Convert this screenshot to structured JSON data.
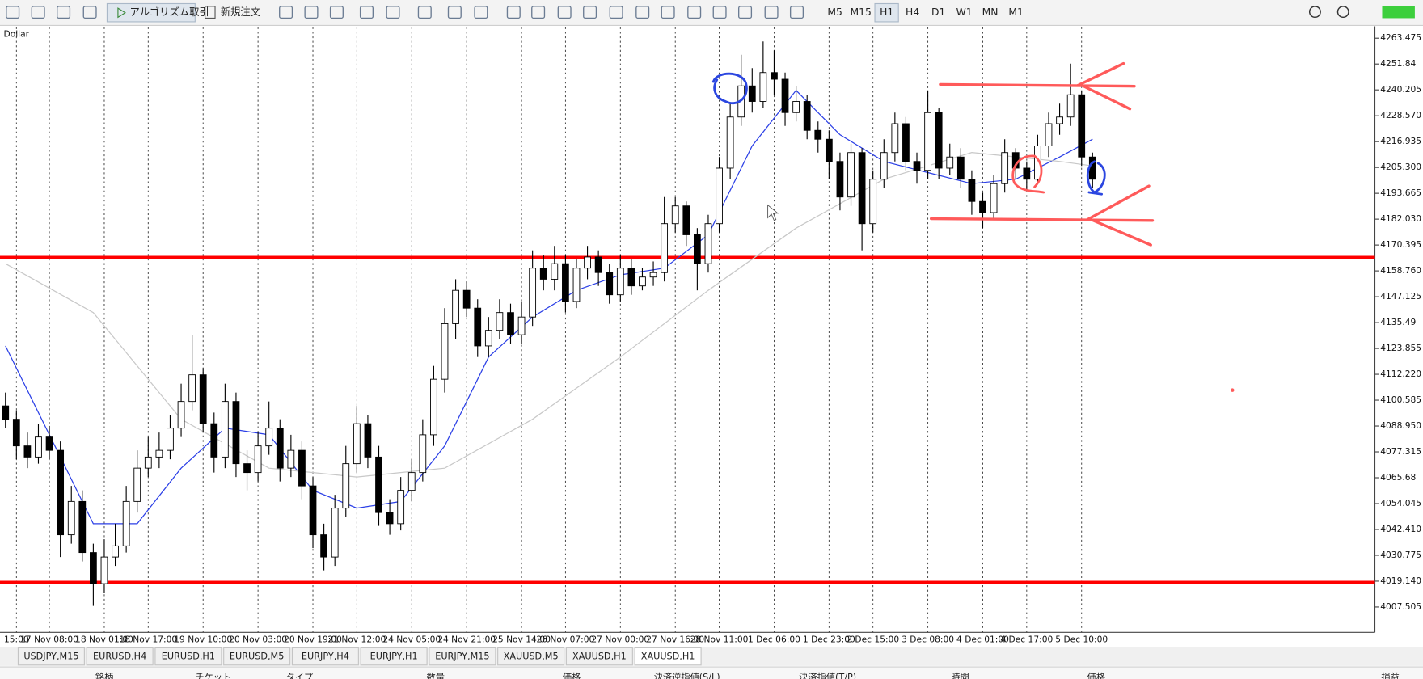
{
  "toolbar": {
    "buttons": [
      "アルゴリズム取引",
      "新規注文"
    ],
    "timeframes": [
      {
        "label": "M5",
        "active": false
      },
      {
        "label": "M15",
        "active": false
      },
      {
        "label": "H1",
        "active": true
      },
      {
        "label": "H4",
        "active": false
      },
      {
        "label": "D1",
        "active": false
      },
      {
        "label": "W1",
        "active": false
      },
      {
        "label": "MN",
        "active": false
      },
      {
        "label": "M1",
        "active": false
      }
    ]
  },
  "chart_data": {
    "type": "candlestick",
    "symbol_label": "Dollar",
    "grid": "vertical",
    "up_color": "#ffffff",
    "down_color": "#000000",
    "ylim": [
      3996.9,
      4268.4
    ],
    "yticks": [
      4263.475,
      4251.84,
      4240.205,
      {
        "value": 4228.57,
        "label": "4228.570"
      },
      4216.935,
      {
        "value": 4205.3,
        "label": "4205.300"
      },
      4193.665,
      {
        "value": 4182.03,
        "label": "4182.030"
      },
      4170.395,
      {
        "value": 4158.76,
        "label": "4158.760"
      },
      4147.125,
      4135.49,
      4123.855,
      {
        "value": 4112.22,
        "label": "4112.220"
      },
      4100.585,
      {
        "value": 4088.95,
        "label": "4088.950"
      },
      4077.315,
      4065.68,
      4054.045,
      {
        "value": 4042.41,
        "label": "4042.410"
      },
      4030.775,
      {
        "value": 4019.14,
        "label": "4019.140"
      },
      4007.505
    ],
    "categories": [
      null,
      "15:00",
      null,
      null,
      "17 Nov 08:00",
      null,
      null,
      null,
      null,
      "18 Nov 01:00",
      null,
      null,
      null,
      "18 Nov 17:00",
      null,
      null,
      null,
      null,
      "19 Nov 10:00",
      null,
      null,
      null,
      null,
      "20 Nov 03:00",
      null,
      null,
      null,
      null,
      "20 Nov 19:00",
      null,
      null,
      null,
      "21 Nov 12:00",
      null,
      null,
      null,
      null,
      "24 Nov 05:00",
      null,
      null,
      null,
      null,
      "24 Nov 21:00",
      null,
      null,
      null,
      null,
      "25 Nov 14:00",
      null,
      null,
      null,
      "26 Nov 07:00",
      null,
      null,
      null,
      null,
      "27 Nov 00:00",
      null,
      null,
      null,
      null,
      "27 Nov 16:00",
      null,
      null,
      null,
      "28 Nov 11:00",
      null,
      null,
      null,
      null,
      "1 Dec 06:00",
      null,
      null,
      null,
      null,
      "1 Dec 23:00",
      null,
      null,
      null,
      "2 Dec 15:00",
      null,
      null,
      null,
      null,
      "3 Dec 08:00",
      null,
      null,
      null,
      null,
      "4 Dec 01:00",
      null,
      null,
      null,
      "4 Dec 17:00",
      null,
      null,
      null,
      null,
      "5 Dec 10:00",
      null
    ],
    "open": [
      4098,
      4092,
      4080,
      4075,
      4084,
      4078,
      4040,
      4055,
      4032,
      4018,
      4030,
      4035,
      4055,
      4070,
      4075,
      4078,
      4088,
      4100,
      4112,
      4090,
      4075,
      4100,
      4072,
      4068,
      4080,
      4088,
      4070,
      4078,
      4062,
      4040,
      4030,
      4052,
      4072,
      4090,
      4075,
      4050,
      4045,
      4060,
      4068,
      4085,
      4110,
      4135,
      4150,
      4142,
      4125,
      4132,
      4140,
      4130,
      4138,
      4160,
      4155,
      4162,
      4145,
      4160,
      4165,
      4158,
      4148,
      4160,
      4152,
      4156,
      4158,
      4180,
      4188,
      4175,
      4162,
      4180,
      4205,
      4228,
      4242,
      4235,
      4248,
      4245,
      4230,
      4235,
      4222,
      4218,
      4208,
      4192,
      4212,
      4180,
      4200,
      4212,
      4225,
      4208,
      4204,
      4230,
      4205,
      4210,
      4200,
      4190,
      4185,
      4198,
      4212,
      4205,
      4200,
      4215,
      4225,
      4228,
      4238,
      4210
    ],
    "high": [
      4104,
      4096,
      4086,
      4090,
      4089,
      4082,
      4062,
      4060,
      4036,
      4038,
      4045,
      4062,
      4078,
      4084,
      4086,
      4094,
      4108,
      4130,
      4115,
      4095,
      4108,
      4104,
      4078,
      4086,
      4100,
      4092,
      4085,
      4082,
      4066,
      4045,
      4058,
      4080,
      4098,
      4094,
      4080,
      4056,
      4066,
      4074,
      4092,
      4116,
      4142,
      4155,
      4154,
      4146,
      4138,
      4146,
      4144,
      4145,
      4168,
      4166,
      4170,
      4166,
      4164,
      4170,
      4168,
      4162,
      4166,
      4164,
      4160,
      4163,
      4192,
      4192,
      4190,
      4178,
      4184,
      4210,
      4234,
      4256,
      4250,
      4262,
      4258,
      4248,
      4242,
      4238,
      4226,
      4222,
      4212,
      4216,
      4214,
      4204,
      4218,
      4230,
      4228,
      4212,
      4240,
      4232,
      4216,
      4214,
      4204,
      4194,
      4202,
      4218,
      4214,
      4208,
      4220,
      4230,
      4234,
      4252,
      4240,
      4212
    ],
    "low": [
      4088,
      4074,
      4070,
      4072,
      4074,
      4030,
      4036,
      4028,
      4008,
      4014,
      4026,
      4032,
      4050,
      4066,
      4070,
      4074,
      4084,
      4096,
      4086,
      4068,
      4070,
      4066,
      4060,
      4064,
      4076,
      4064,
      4066,
      4056,
      4034,
      4024,
      4026,
      4048,
      4068,
      4070,
      4044,
      4040,
      4042,
      4055,
      4064,
      4080,
      4104,
      4128,
      4138,
      4120,
      4120,
      4128,
      4126,
      4126,
      4134,
      4150,
      4150,
      4140,
      4142,
      4155,
      4152,
      4144,
      4145,
      4148,
      4150,
      4152,
      4154,
      4176,
      4170,
      4150,
      4158,
      4176,
      4200,
      4224,
      4230,
      4232,
      4238,
      4224,
      4226,
      4218,
      4212,
      4200,
      4186,
      4188,
      4168,
      4176,
      4196,
      4208,
      4204,
      4198,
      4200,
      4200,
      4202,
      4196,
      4184,
      4178,
      4182,
      4194,
      4200,
      4195,
      4198,
      4210,
      4220,
      4224,
      4206,
      4196
    ],
    "close": [
      4092,
      4080,
      4075,
      4084,
      4078,
      4040,
      4055,
      4032,
      4018,
      4030,
      4035,
      4055,
      4070,
      4075,
      4078,
      4088,
      4100,
      4112,
      4090,
      4075,
      4100,
      4072,
      4068,
      4080,
      4088,
      4070,
      4078,
      4062,
      4040,
      4030,
      4052,
      4072,
      4090,
      4075,
      4050,
      4045,
      4060,
      4068,
      4085,
      4110,
      4135,
      4150,
      4142,
      4125,
      4132,
      4140,
      4130,
      4138,
      4160,
      4155,
      4162,
      4145,
      4160,
      4165,
      4158,
      4148,
      4160,
      4152,
      4156,
      4158,
      4180,
      4188,
      4175,
      4162,
      4180,
      4205,
      4228,
      4242,
      4235,
      4248,
      4245,
      4230,
      4235,
      4222,
      4218,
      4208,
      4192,
      4212,
      4180,
      4200,
      4212,
      4225,
      4208,
      4204,
      4230,
      4205,
      4210,
      4200,
      4190,
      4185,
      4198,
      4212,
      4205,
      4200,
      4215,
      4225,
      4228,
      4238,
      4210,
      4200
    ],
    "lines": [
      {
        "color": "#2b3fe6",
        "x": [
          0,
          4,
          8,
          12,
          16,
          20,
          24,
          28,
          32,
          36,
          40,
          44,
          48,
          52,
          56,
          60,
          64,
          68,
          72,
          76,
          80,
          84,
          88,
          92,
          96,
          99
        ],
        "values": [
          4125,
          4085,
          4045,
          4045,
          4070,
          4088,
          4085,
          4060,
          4052,
          4055,
          4080,
          4120,
          4138,
          4150,
          4157,
          4160,
          4175,
          4215,
          4240,
          4220,
          4208,
          4203,
          4198,
          4200,
          4210,
          4218
        ]
      },
      {
        "color": "#c8c8c8",
        "x": [
          0,
          8,
          16,
          24,
          32,
          40,
          48,
          56,
          64,
          72,
          80,
          88,
          96,
          99
        ],
        "values": [
          4162,
          4140,
          4092,
          4070,
          4066,
          4070,
          4092,
          4120,
          4150,
          4178,
          4200,
          4212,
          4208,
          4206
        ]
      }
    ],
    "levels": [
      {
        "value": 4164.7,
        "color": "#ff0000"
      },
      {
        "value": 4018.5,
        "color": "#ff0000"
      }
    ]
  },
  "tabs": [
    {
      "label": "USDJPY,M15",
      "active": false
    },
    {
      "label": "EURUSD,H4",
      "active": false
    },
    {
      "label": "EURUSD,H1",
      "active": false
    },
    {
      "label": "EURUSD,M5",
      "active": false
    },
    {
      "label": "EURJPY,H4",
      "active": false
    },
    {
      "label": "EURJPY,H1",
      "active": false
    },
    {
      "label": "EURJPY,M15",
      "active": false
    },
    {
      "label": "XAUUSD,M5",
      "active": false
    },
    {
      "label": "XAUUSD,H1",
      "active": false
    },
    {
      "label": "XAUUSD,H1",
      "active": true
    }
  ],
  "table": {
    "headers": [
      "銘柄",
      "チケット",
      "タイプ",
      "数量",
      "価格",
      "決済逆指値(S/L)",
      "決済指値(T/P)",
      "時間",
      "価格",
      "損益"
    ]
  }
}
